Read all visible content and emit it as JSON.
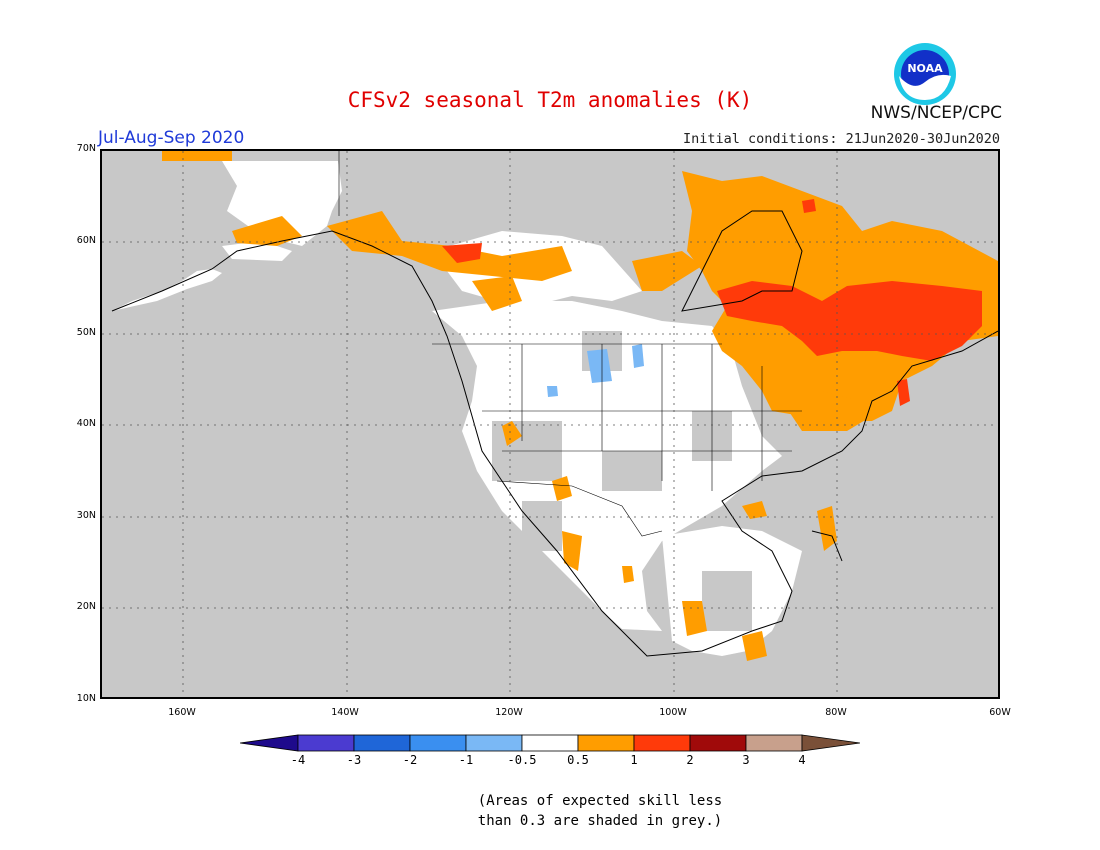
{
  "header": {
    "title": "CFSv2 seasonal T2m anomalies (K)",
    "period": "Jul-Aug-Sep 2020",
    "initial_conditions": "Initial conditions: 21Jun2020-30Jun2020",
    "agency": "NWS/NCEP/CPC",
    "logo_text": "NOAA"
  },
  "map": {
    "region": "North America",
    "lat_labels": [
      "70N",
      "60N",
      "50N",
      "40N",
      "30N",
      "20N",
      "10N"
    ],
    "lon_labels": [
      "160W",
      "140W",
      "120W",
      "100W",
      "80W",
      "60W"
    ],
    "lat_range": [
      10,
      70
    ],
    "lon_range": [
      -170,
      -60
    ],
    "gridlines": "dotted",
    "masked_color": "#c8c8c8",
    "anomaly_regions": [
      {
        "area": "Eastern Canada (Quebec / Ontario)",
        "anomaly_class": "1 to 2"
      },
      {
        "area": "Hudson Bay coast",
        "anomaly_class": "0.5 to 1"
      },
      {
        "area": "Labrador / Newfoundland",
        "anomaly_class": "0.5 to 1"
      },
      {
        "area": "Great Lakes / New England",
        "anomaly_class": "0.5 to 1"
      },
      {
        "area": "Northern British Columbia / Yukon",
        "anomaly_class": "0.5 to 1"
      },
      {
        "area": "Southern Alaska",
        "anomaly_class": "0.5 to 1"
      },
      {
        "area": "Northern Montana",
        "anomaly_class": "-1 to -0.5"
      }
    ]
  },
  "colorbar": {
    "labels": [
      "-4",
      "-3",
      "-2",
      "-1",
      "-0.5",
      "0.5",
      "1",
      "2",
      "3",
      "4"
    ],
    "colors": [
      "#1e0a8c",
      "#4b3bd0",
      "#1f66d8",
      "#3a8ff0",
      "#7ab8f5",
      "#ffffff",
      "#ff9d00",
      "#ff3a0a",
      "#a00a0a",
      "#c8a08c",
      "#7a5038"
    ]
  },
  "note": {
    "line1": "(Areas of expected skill less",
    "line2": "than 0.3 are shaded in grey.)"
  },
  "colors": {
    "title": "#e00000",
    "period": "#1f3ad8",
    "orange": "#ff9d00",
    "red": "#ff3a0a",
    "white": "#ffffff",
    "blue": "#7ab8f5"
  }
}
